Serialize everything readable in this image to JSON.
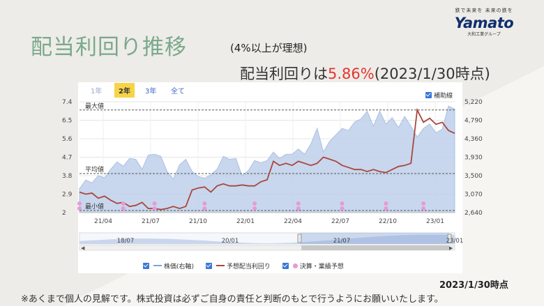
{
  "title": "配当利回り推移",
  "subtitle": "(4%以上が理想)",
  "yield_prefix": "配当利回りは",
  "yield_value": "5.86%",
  "yield_suffix": "(2023/1/30時点)",
  "logo": {
    "tagline": "鉄で未来を 未来の鉄を",
    "word": "Yamato",
    "company": "大和工業グループ"
  },
  "periods": [
    "1年",
    "2年",
    "3年",
    "全て"
  ],
  "active_period": "2年",
  "aux_label": "補助線",
  "ref_lines": {
    "max": "最大値",
    "avg": "平均値",
    "min": "最小値"
  },
  "legend": [
    "株価(右軸)",
    "予想配当利回り",
    "決算・業績予想"
  ],
  "date_note": "2023/1/30時点",
  "disclaimer": "※あくまで個人の見解です。株式投資は必ずご自身の責任と判断のもとで行うようにお願いいたします。",
  "colors": {
    "price_area": "#bed0ea",
    "yield_line": "#a9463d",
    "events": "#e89ad5",
    "title": "#7aa98c",
    "highlight": "#e4352f"
  },
  "chart_data": {
    "type": "line",
    "x_ticks": [
      "21/04",
      "21/07",
      "21/10",
      "22/01",
      "22/04",
      "22/07",
      "22/10",
      "23/01"
    ],
    "left_axis": {
      "ticks": [
        "7.4",
        "6.5",
        "5.6",
        "4.7",
        "3.8",
        "2.9",
        "2"
      ],
      "range": [
        2,
        7.4
      ]
    },
    "right_axis": {
      "ticks": [
        "5,220",
        "4,790",
        "4,360",
        "3,930",
        "3,500",
        "3,070",
        "2,640"
      ],
      "range": [
        2640,
        5220
      ]
    },
    "ref_values": {
      "max": 7.0,
      "avg": 3.9,
      "min": 2.1
    },
    "navigator_ticks": [
      "18/07",
      "20/01",
      "21/07",
      "23/01"
    ],
    "series": [
      {
        "name": "株価(右軸)",
        "axis": "right",
        "values": [
          3200,
          3400,
          3330,
          3500,
          3450,
          3650,
          3820,
          3720,
          3900,
          3880,
          3650,
          3980,
          4000,
          3950,
          3600,
          3420,
          3750,
          3880,
          3600,
          3480,
          3440,
          3520,
          3650,
          3950,
          3880,
          3900,
          3500,
          3620,
          3850,
          3800,
          3850,
          4050,
          3900,
          4000,
          4000,
          4120,
          4000,
          4240,
          4600,
          4050,
          4300,
          4450,
          4600,
          4550,
          4750,
          4820,
          5000,
          4650,
          5000,
          4700,
          4850,
          4620,
          4880,
          4650,
          4400,
          4600,
          4700,
          4500,
          4580,
          5120,
          5050
        ]
      },
      {
        "name": "予想配当利回り",
        "axis": "left",
        "values": [
          3.0,
          2.9,
          2.95,
          2.7,
          2.8,
          2.6,
          2.45,
          2.5,
          2.3,
          2.35,
          2.5,
          2.2,
          2.2,
          2.15,
          2.2,
          2.3,
          2.2,
          2.3,
          3.1,
          3.2,
          3.25,
          3.0,
          3.3,
          3.4,
          3.3,
          3.3,
          3.35,
          3.3,
          3.3,
          3.5,
          3.6,
          4.5,
          4.3,
          4.4,
          4.3,
          4.5,
          4.4,
          4.3,
          4.4,
          4.7,
          4.6,
          4.5,
          4.3,
          4.2,
          4.1,
          4.1,
          4.0,
          4.1,
          4.0,
          3.95,
          4.1,
          4.25,
          4.3,
          4.4,
          7.0,
          6.4,
          6.6,
          6.3,
          6.4,
          6.0,
          5.86
        ]
      },
      {
        "name": "決算・業績予想",
        "type": "events",
        "x": [
          0,
          7,
          12,
          20,
          28,
          35,
          42,
          49,
          55
        ]
      }
    ]
  }
}
